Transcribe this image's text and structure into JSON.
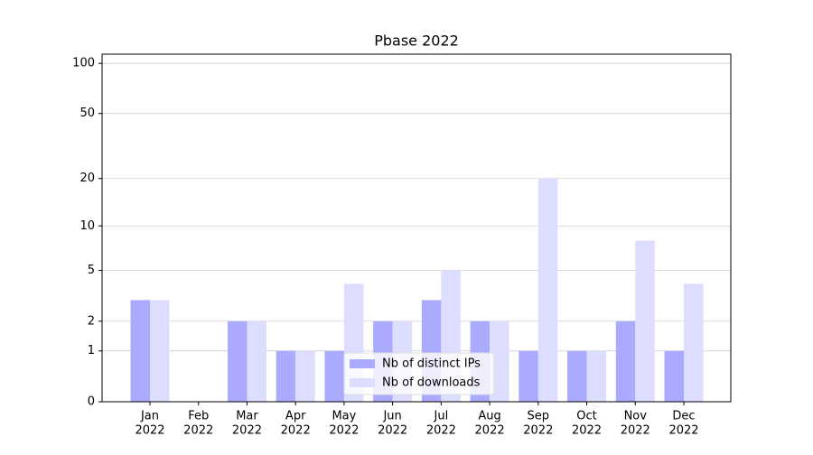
{
  "chart_data": {
    "type": "bar",
    "title": "Pbase 2022",
    "categories": [
      [
        "Jan",
        "2022"
      ],
      [
        "Feb",
        "2022"
      ],
      [
        "Mar",
        "2022"
      ],
      [
        "Apr",
        "2022"
      ],
      [
        "May",
        "2022"
      ],
      [
        "Jun",
        "2022"
      ],
      [
        "Jul",
        "2022"
      ],
      [
        "Aug",
        "2022"
      ],
      [
        "Sep",
        "2022"
      ],
      [
        "Oct",
        "2022"
      ],
      [
        "Nov",
        "2022"
      ],
      [
        "Dec",
        "2022"
      ]
    ],
    "series": [
      {
        "name": "Nb of distinct IPs",
        "color": "#aaaaff",
        "values": [
          3,
          0,
          2,
          1,
          1,
          2,
          3,
          2,
          1,
          1,
          2,
          1
        ]
      },
      {
        "name": "Nb of downloads",
        "color": "#ddddff",
        "values": [
          3,
          0,
          2,
          1,
          4,
          2,
          5,
          2,
          20,
          1,
          8,
          4
        ]
      }
    ],
    "yscale": "log1p",
    "ylim": [
      0,
      113.5
    ],
    "yticks": [
      0,
      1,
      2,
      5,
      10,
      20,
      50,
      100
    ],
    "grid": true,
    "legend": "lower center"
  }
}
